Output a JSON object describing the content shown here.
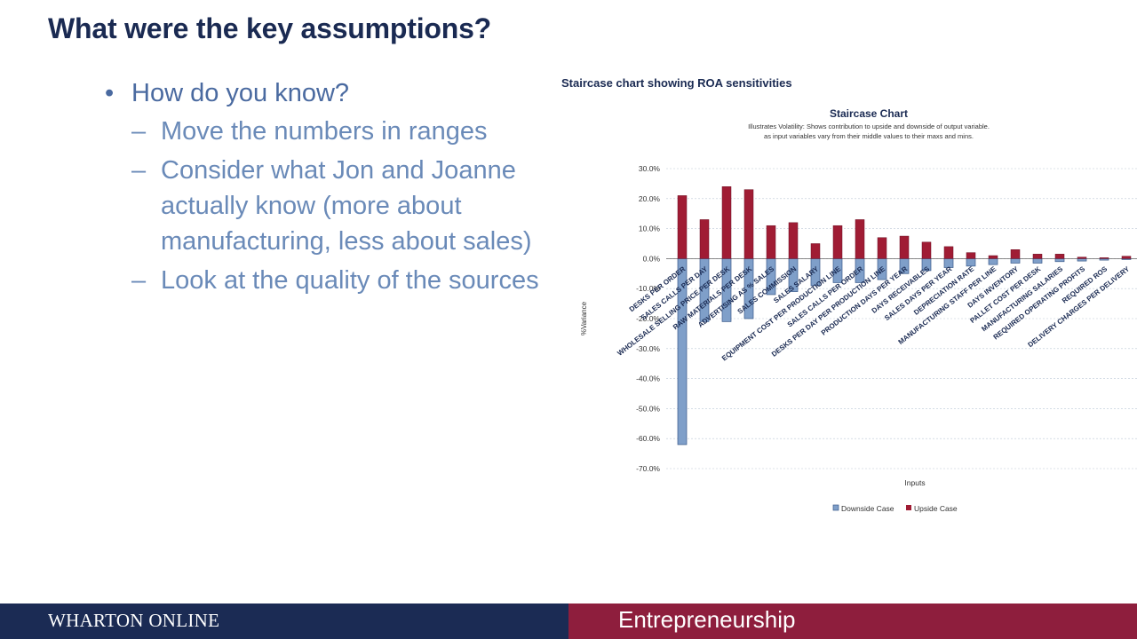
{
  "slide": {
    "title": "What were the key assumptions?",
    "bullet": "How do you know?",
    "subbullets": [
      "Move the numbers in ranges",
      "Consider what Jon and Joanne actually know (more about manufacturing, less about sales)",
      "Look at the quality of the sources"
    ],
    "chart_heading": "Staircase chart showing ROA sensitivities"
  },
  "footer": {
    "left": "WHARTON ONLINE",
    "right": "Entrepreneurship"
  },
  "colors": {
    "title": "#1a2a52",
    "bullet": "#4a6aa0",
    "downside": "#7f9fc9",
    "upside": "#a01c34",
    "footer_left": "#1b2b54",
    "footer_right": "#8e1e3d"
  },
  "chart_data": {
    "type": "bar",
    "title": "Staircase Chart",
    "subtitle": [
      "Illustrates Volatility: Shows contribution to upside and downside of output variable.",
      "as input variables vary from their middle values to their maxs and mins."
    ],
    "xlabel": "Inputs",
    "ylabel": "%Variance",
    "ylim": [
      -70,
      30
    ],
    "yticks": [
      "30.0%",
      "20.0%",
      "10.0%",
      "0.0%",
      "-10.0%",
      "-20.0%",
      "-30.0%",
      "-40.0%",
      "-50.0%",
      "-60.0%",
      "-70.0%"
    ],
    "grid": true,
    "legend": "bottom",
    "categories": [
      "DESKS PER ORDER",
      "SALES CALLS PER DAY",
      "WHOLESALE SELLING PRICE PER DESK",
      "RAW MATERIALS PER DESK",
      "ADVERTISING AS % SALES",
      "SALES COMMISSION",
      "SALES SALARY",
      "EQUIPMENT COST PER PRODUCTION LINE",
      "SALES CALLS PER ORDER",
      "DESKS PER DAY PER PRODUCTION LINE",
      "PRODUCTION DAYS PER YEAR",
      "DAYS RECEIVABLES",
      "SALES DAYS PER YEAR",
      "DEPRECIATION RATE",
      "MANUFACTURING STAFF PER LINE",
      "DAYS INVENTORY",
      "PALLET COST PER DESK",
      "MANUFACTURING SALARIES",
      "REQUIRED OPERATING PROFITS",
      "REQUIRED ROS",
      "DELIVERY CHARGES PER DELIVERY",
      "REQUIRED RO"
    ],
    "series": [
      {
        "name": "Downside Case",
        "values": [
          -62,
          -21,
          -21,
          -20,
          -12,
          -11,
          -9,
          -8,
          -8,
          -7,
          -5,
          -4,
          -3,
          -2.5,
          -2,
          -1.5,
          -1.5,
          -1,
          -0.8,
          -0.5,
          -0.3,
          -0.2
        ]
      },
      {
        "name": "Upside Case",
        "values": [
          21,
          13,
          24,
          23,
          11,
          12,
          5,
          11,
          13,
          7,
          7.5,
          5.5,
          4,
          2,
          1,
          3,
          1.5,
          1.5,
          0.5,
          0.3,
          0.8,
          0.2
        ]
      }
    ]
  }
}
